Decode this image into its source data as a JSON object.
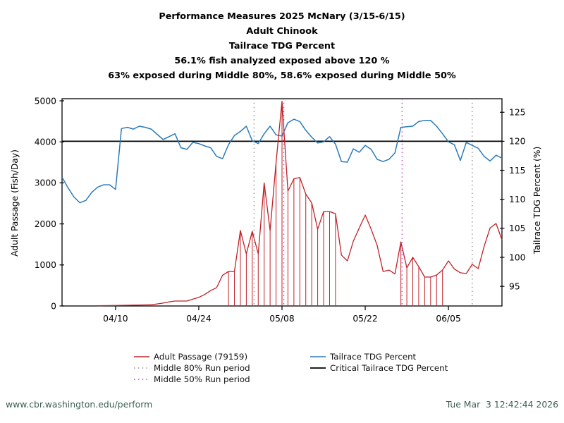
{
  "header": {
    "title_lines": [
      "Performance Measures 2025 McNary (3/15-6/15)",
      "Adult Chinook",
      "Tailrace TDG Percent",
      "56.1% fish analyzed exposed above 120 %",
      "63% exposed during Middle 80%, 58.6% exposed during Middle 50%"
    ]
  },
  "chart_data": {
    "type": "line",
    "title": "Performance Measures 2025 McNary (3/15-6/15) Adult Chinook Tailrace TDG Percent",
    "x_axis": {
      "start_date": "04/01",
      "end_date": "06/14",
      "domain_days": 74,
      "ticks": {
        "days": [
          9,
          23,
          37,
          51,
          65
        ],
        "labels": [
          "04/10",
          "04/24",
          "05/08",
          "05/22",
          "06/05"
        ]
      }
    },
    "left_axis": {
      "label": "Adult Passage (Fish/Day)",
      "min": 0,
      "max": 5000,
      "ticks": [
        0,
        1000,
        2000,
        3000,
        4000,
        5000
      ]
    },
    "right_axis": {
      "label": "Tailrace TDG Percent (%)",
      "ticks": [
        95,
        100,
        105,
        110,
        115,
        120,
        125
      ]
    },
    "series": [
      {
        "name": "Adult Passage (79159)",
        "axis": "left",
        "color": "#c02128",
        "start_day": 6,
        "values": [
          5,
          8,
          10,
          12,
          15,
          18,
          20,
          22,
          25,
          30,
          50,
          70,
          100,
          120,
          120,
          120,
          165,
          210,
          280,
          375,
          445,
          750,
          840,
          840,
          1840,
          1270,
          1820,
          1270,
          3000,
          1840,
          3500,
          4990,
          2800,
          3100,
          3130,
          2730,
          2510,
          1870,
          2300,
          2300,
          2250,
          1240,
          1100,
          1580,
          1900,
          2215,
          1870,
          1480,
          840,
          875,
          780,
          1560,
          930,
          1185,
          960,
          705,
          705,
          755,
          875,
          1100,
          900,
          810,
          790,
          1015,
          910,
          1450,
          1900,
          2010,
          1615
        ]
      },
      {
        "name": "Tailrace TDG Percent",
        "axis": "right",
        "color": "#2b7bb9",
        "start_day": 0,
        "values": [
          113.8,
          112.0,
          110.4,
          109.4,
          109.8,
          111.2,
          112.1,
          112.5,
          112.5,
          111.7,
          122.2,
          122.4,
          122.1,
          122.6,
          122.4,
          122.1,
          121.2,
          120.3,
          120.8,
          121.3,
          118.9,
          118.6,
          119.8,
          119.6,
          119.2,
          118.9,
          117.4,
          117.0,
          119.4,
          121.0,
          121.7,
          122.6,
          120.1,
          119.6,
          121.3,
          122.6,
          121.1,
          120.9,
          123.2,
          123.8,
          123.4,
          121.9,
          120.7,
          119.7,
          119.9,
          120.8,
          119.5,
          116.5,
          116.4,
          118.7,
          118.1,
          119.3,
          118.6,
          116.9,
          116.5,
          116.9,
          118.0,
          122.4,
          122.5,
          122.6,
          123.4,
          123.6,
          123.6,
          122.6,
          121.3,
          119.9,
          119.4,
          116.7,
          119.8,
          119.3,
          118.8,
          117.4,
          116.6,
          117.6,
          117.1
        ]
      }
    ],
    "stems": {
      "color": "#c02128",
      "day_ranges": [
        [
          28,
          46
        ],
        [
          57,
          64
        ]
      ]
    },
    "critical_line": {
      "label": "Critical Tailrace TDG Percent",
      "value": 120,
      "color": "#000000"
    },
    "run_period_lines": [
      {
        "label": "Middle 80% Run period",
        "color": "#9a9a9a",
        "days": [
          32.3,
          69.0
        ],
        "approx_dates": [
          "05/03",
          "06/09"
        ]
      },
      {
        "label": "Middle 50% Run period",
        "color": "#c44ec4",
        "days": [
          37.3,
          57.2
        ],
        "approx_dates": [
          "05/08",
          "05/28"
        ]
      }
    ],
    "stats": {
      "total_passage": "79159",
      "pct_exposed_above_120": "56.1%",
      "pct_exposed_middle80": "63%",
      "pct_exposed_middle50": "58.6%"
    }
  },
  "footer": {
    "left": "www.cbr.washington.edu/perform",
    "right": "Tue Mar  3 12:42:44 2026",
    "color": "#3d5f55"
  }
}
